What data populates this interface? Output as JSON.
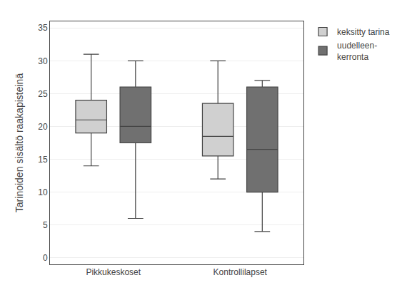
{
  "chart_data": {
    "type": "box",
    "categories": [
      "Pikkukeskoset",
      "Kontrollilapset"
    ],
    "series": [
      {
        "name": "keksitty tarina",
        "color": "#d0d0d0",
        "values": [
          {
            "whislo": 14,
            "q1": 19,
            "med": 21,
            "q3": 24,
            "whishi": 31
          },
          {
            "whislo": 12,
            "q1": 15.5,
            "med": 18.5,
            "q3": 23.5,
            "whishi": 30
          }
        ]
      },
      {
        "name": "uudelleen-\nkerronta",
        "color": "#707070",
        "values": [
          {
            "whislo": 6,
            "q1": 17.5,
            "med": 20,
            "q3": 26,
            "whishi": 30
          },
          {
            "whislo": 4,
            "q1": 10,
            "med": 16.5,
            "q3": 26,
            "whishi": 27
          }
        ]
      }
    ],
    "ylabel": "Tarinoiden sisältö raakapisteinä",
    "ylim": [
      -1,
      36
    ],
    "yticks": [
      0,
      5,
      10,
      15,
      20,
      25,
      30,
      35
    ],
    "grid": true
  }
}
